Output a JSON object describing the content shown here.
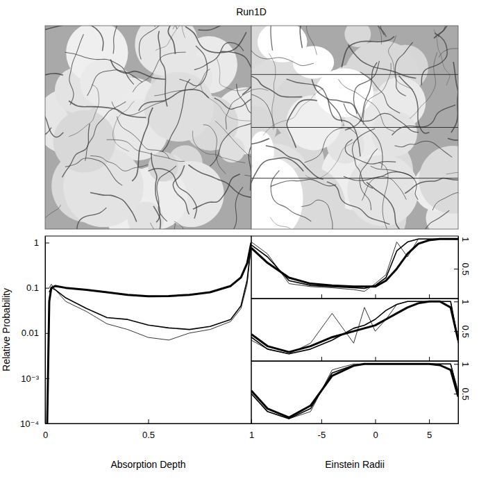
{
  "title": "Run1D",
  "chart_data": [
    {
      "type": "line",
      "xlabel": "Absorption Depth",
      "ylabel": "Relative Probability",
      "log": "y",
      "xlim": [
        0,
        1
      ],
      "xticks": [
        0,
        0.5,
        1
      ],
      "ylim": [
        0.0001,
        1.4
      ],
      "yticks": [
        {
          "value": 0.0001,
          "label": "10⁻⁴"
        },
        {
          "value": 0.001,
          "label": "10⁻³"
        },
        0.01,
        0.1,
        1
      ],
      "x": [
        0.01,
        0.02,
        0.03,
        0.05,
        0.1,
        0.2,
        0.3,
        0.4,
        0.5,
        0.6,
        0.7,
        0.8,
        0.9,
        0.95,
        0.98,
        1
      ],
      "series": [
        {
          "color": "#000000",
          "values": [
            0.0001,
            0.05,
            0.1,
            0.11,
            0.1,
            0.09,
            0.08,
            0.07,
            0.065,
            0.066,
            0.07,
            0.08,
            0.11,
            0.17,
            0.35,
            1
          ]
        },
        {
          "color": "#000000",
          "values": [
            null,
            0.08,
            0.1,
            0.09,
            0.06,
            0.035,
            0.022,
            0.02,
            0.015,
            0.013,
            0.012,
            0.014,
            0.02,
            0.04,
            0.15,
            1
          ]
        },
        {
          "color": "#000000",
          "values": [
            null,
            0.1,
            0.12,
            0.09,
            0.05,
            0.03,
            0.016,
            0.012,
            0.008,
            0.007,
            0.01,
            0.012,
            0.018,
            0.035,
            0.12,
            0.9
          ]
        }
      ]
    },
    {
      "type": "line",
      "tick_labels": "y",
      "xlim": [
        -11.5,
        7.7
      ],
      "xticks": [
        -5,
        0,
        5
      ],
      "ylim": [
        0,
        1.05
      ],
      "yticks": [
        0.5,
        1
      ],
      "x": [
        -11.5,
        -10,
        -8,
        -6,
        -4,
        -2,
        -1,
        0,
        1,
        2,
        3,
        4,
        5,
        6,
        7,
        7.7
      ],
      "series": [
        {
          "color": "#000000",
          "values": [
            0.85,
            0.6,
            0.35,
            0.25,
            0.22,
            0.2,
            0.2,
            0.2,
            0.3,
            0.5,
            0.75,
            0.92,
            0.98,
            1,
            1,
            1
          ]
        },
        {
          "color": "#000000",
          "values": [
            0.9,
            0.7,
            0.3,
            0.22,
            0.2,
            0.18,
            0.17,
            0.22,
            0.35,
            0.8,
            0.95,
            1,
            1,
            1,
            1,
            1
          ]
        },
        {
          "color": "#000000",
          "values": [
            0.95,
            0.75,
            0.25,
            0.2,
            0.18,
            0.15,
            0.12,
            0.25,
            0.4,
            0.95,
            0.7,
            1,
            1,
            1,
            1,
            1
          ]
        }
      ]
    },
    {
      "type": "line",
      "tick_labels": "y",
      "xlim": [
        -11.5,
        7.7
      ],
      "xticks": [
        -5,
        0,
        5
      ],
      "ylim": [
        0,
        1.05
      ],
      "yticks": [
        0.5,
        1
      ],
      "x": [
        -11.5,
        -10,
        -8,
        -6,
        -4,
        -2,
        -1,
        0,
        1,
        2,
        3,
        4,
        5,
        6,
        7,
        7.7
      ],
      "series": [
        {
          "color": "#000000",
          "values": [
            0.45,
            0.25,
            0.15,
            0.25,
            0.4,
            0.5,
            0.55,
            0.6,
            0.7,
            0.8,
            0.9,
            0.97,
            1,
            1,
            0.9,
            0.35
          ]
        },
        {
          "color": "#000000",
          "values": [
            0.4,
            0.2,
            0.12,
            0.2,
            0.35,
            0.55,
            0.6,
            0.7,
            0.85,
            0.95,
            1,
            1,
            1,
            1,
            1,
            0.35
          ]
        },
        {
          "color": "#000000",
          "values": [
            0.35,
            0.2,
            0.12,
            0.3,
            0.8,
            0.3,
            0.9,
            0.5,
            0.7,
            0.95,
            1,
            1,
            1,
            1,
            1,
            0.3
          ]
        }
      ]
    },
    {
      "type": "line",
      "xlabel": "Einstein Radii",
      "xlim": [
        -11.5,
        7.7
      ],
      "xticks": [
        -5,
        0,
        5
      ],
      "ylim": [
        0,
        1.05
      ],
      "yticks": [
        0.5,
        1
      ],
      "x": [
        -11.5,
        -10,
        -8,
        -6,
        -4,
        -2,
        -1,
        0,
        1,
        2,
        3,
        4,
        5,
        6,
        7,
        7.7
      ],
      "series": [
        {
          "color": "#000000",
          "values": [
            0.55,
            0.25,
            0.1,
            0.3,
            0.8,
            0.97,
            1,
            1,
            1,
            1,
            1,
            1,
            1,
            0.98,
            0.9,
            0.45
          ]
        },
        {
          "color": "#000000",
          "values": [
            0.5,
            0.2,
            0.08,
            0.25,
            0.85,
            0.98,
            1,
            1,
            1,
            1,
            1,
            1,
            1,
            1,
            1,
            0.5
          ]
        },
        {
          "color": "#000000",
          "values": [
            0.5,
            0.2,
            0.08,
            0.2,
            0.9,
            1,
            1,
            1,
            1,
            1,
            1,
            1,
            1,
            1,
            1,
            0.55
          ]
        }
      ]
    }
  ]
}
